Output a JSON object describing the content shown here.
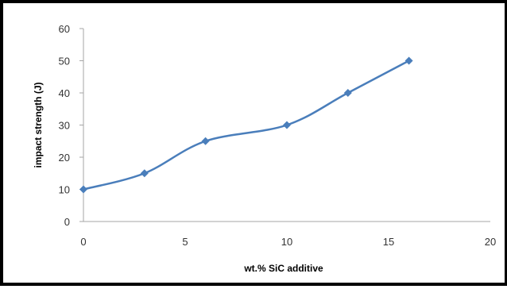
{
  "colors": {
    "series": "#4a7ebb",
    "axis": "#a6a6a6",
    "text": "#333333",
    "frame": "#000000"
  },
  "chart_data": {
    "type": "scatter",
    "mode": "smoothed-line-with-markers",
    "marker": "diamond",
    "title": "",
    "xlabel": "wt.% SiC additive",
    "ylabel": "impact strength (J)",
    "xlim": [
      0,
      20
    ],
    "ylim": [
      0,
      60
    ],
    "xticks": [
      0,
      5,
      10,
      15,
      20
    ],
    "yticks": [
      0,
      10,
      20,
      30,
      40,
      50,
      60
    ],
    "grid": false,
    "legend": "none",
    "series": [
      {
        "x": [
          0,
          3,
          6,
          10,
          13,
          16
        ],
        "y": [
          10,
          15,
          25,
          30,
          40,
          50
        ]
      }
    ]
  }
}
